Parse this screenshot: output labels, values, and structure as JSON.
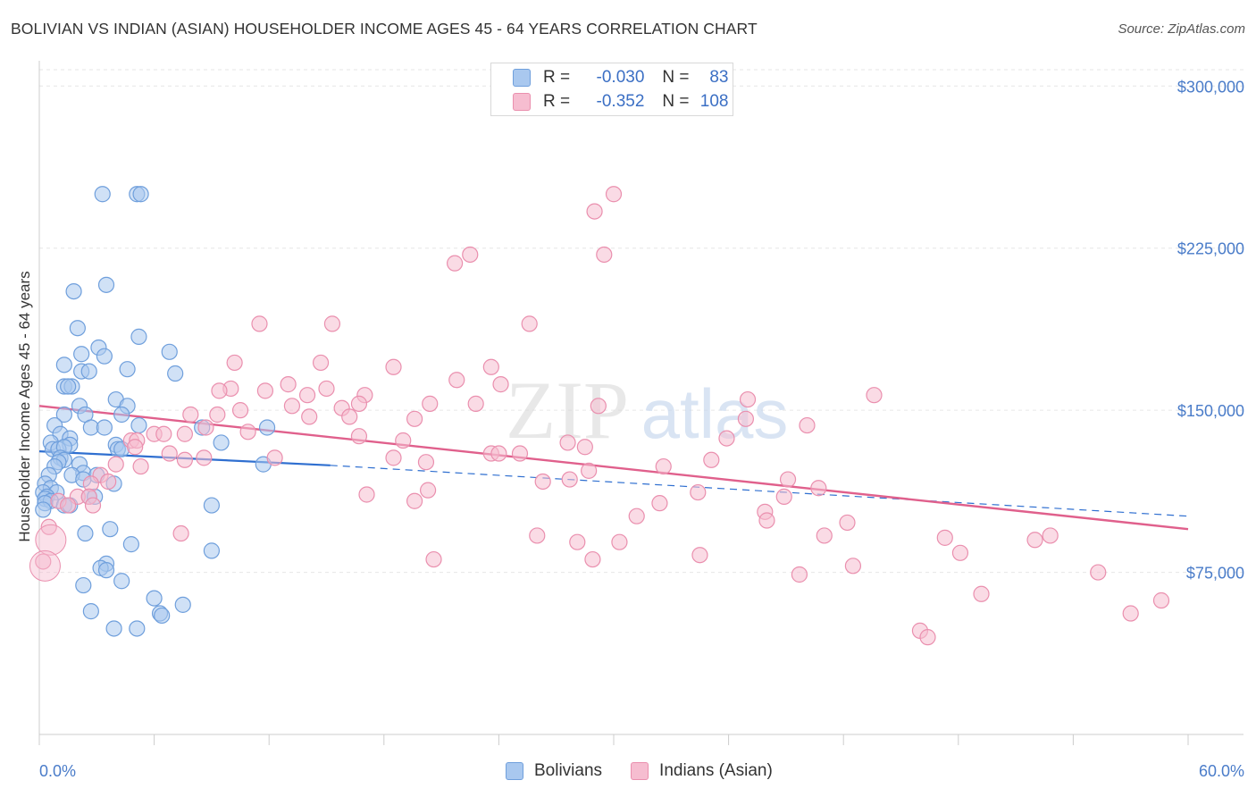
{
  "title": "BOLIVIAN VS INDIAN (ASIAN) HOUSEHOLDER INCOME AGES 45 - 64 YEARS CORRELATION CHART",
  "source": "Source: ZipAtlas.com",
  "watermark": {
    "part1": "ZIP",
    "part2": "atlas"
  },
  "colors": {
    "blue_fill": "#a9c8ef",
    "blue_stroke": "#6f9fdc",
    "blue_line": "#2f6fd0",
    "pink_fill": "#f6bdd0",
    "pink_stroke": "#ea8fae",
    "pink_line": "#e0608c",
    "grid": "#e6e6e6",
    "axis_text": "#4a7cc9"
  },
  "legend": {
    "rows": [
      {
        "r_label": "R =",
        "r_value": "-0.030",
        "n_label": "N =",
        "n_value": "83"
      },
      {
        "r_label": "R =",
        "r_value": "-0.352",
        "n_label": "N =",
        "n_value": "108"
      }
    ]
  },
  "bottom_legend": {
    "series1": "Bolivians",
    "series2": "Indians (Asian)"
  },
  "chart_data": {
    "type": "scatter",
    "title": "BOLIVIAN VS INDIAN (ASIAN) HOUSEHOLDER INCOME AGES 45 - 64 YEARS CORRELATION CHART",
    "xlabel": "",
    "ylabel": "Householder Income Ages 45 - 64 years",
    "xlim": [
      0,
      60
    ],
    "ylim": [
      0,
      315000
    ],
    "x_tick_labels": {
      "left": "0.0%",
      "right": "60.0%"
    },
    "y_ticks": [
      {
        "value": 75000,
        "label": "$75,000"
      },
      {
        "value": 150000,
        "label": "$150,000"
      },
      {
        "value": 225000,
        "label": "$225,000"
      },
      {
        "value": 300000,
        "label": "$300,000"
      }
    ],
    "grid": true,
    "legend_position": "top-center",
    "series": [
      {
        "name": "Bolivians",
        "color": "blue",
        "trend": {
          "x_start": 0,
          "y_start": 131000,
          "x_solid_end": 15.2,
          "y_solid_end": 124500,
          "x_end": 60,
          "y_end": 101000
        },
        "points": [
          [
            3.3,
            250000
          ],
          [
            5.1,
            250000
          ],
          [
            5.3,
            250000
          ],
          [
            1.8,
            205000
          ],
          [
            3.5,
            208000
          ],
          [
            2.0,
            188000
          ],
          [
            5.2,
            184000
          ],
          [
            3.1,
            179000
          ],
          [
            2.2,
            176000
          ],
          [
            3.4,
            175000
          ],
          [
            6.8,
            177000
          ],
          [
            1.3,
            171000
          ],
          [
            2.2,
            168000
          ],
          [
            2.6,
            168000
          ],
          [
            4.6,
            169000
          ],
          [
            7.1,
            167000
          ],
          [
            1.3,
            161000
          ],
          [
            1.7,
            161000
          ],
          [
            1.5,
            161000
          ],
          [
            4.0,
            155000
          ],
          [
            4.6,
            152000
          ],
          [
            2.1,
            152000
          ],
          [
            1.3,
            148000
          ],
          [
            2.4,
            148000
          ],
          [
            4.3,
            148000
          ],
          [
            5.2,
            143000
          ],
          [
            0.8,
            143000
          ],
          [
            2.7,
            142000
          ],
          [
            3.4,
            142000
          ],
          [
            8.5,
            142000
          ],
          [
            11.9,
            142000
          ],
          [
            1.1,
            139000
          ],
          [
            1.6,
            137000
          ],
          [
            0.6,
            135000
          ],
          [
            1.6,
            134000
          ],
          [
            4.0,
            134000
          ],
          [
            9.5,
            135000
          ],
          [
            0.7,
            132000
          ],
          [
            1.0,
            132000
          ],
          [
            1.3,
            133000
          ],
          [
            4.1,
            132000
          ],
          [
            4.3,
            132000
          ],
          [
            1.1,
            128000
          ],
          [
            1.3,
            127000
          ],
          [
            1.0,
            126000
          ],
          [
            2.1,
            125000
          ],
          [
            0.8,
            124000
          ],
          [
            11.7,
            125000
          ],
          [
            2.3,
            121000
          ],
          [
            1.7,
            120000
          ],
          [
            0.5,
            120000
          ],
          [
            3.0,
            120000
          ],
          [
            2.3,
            118000
          ],
          [
            0.3,
            116000
          ],
          [
            3.9,
            116000
          ],
          [
            0.6,
            114000
          ],
          [
            0.2,
            112000
          ],
          [
            0.9,
            112000
          ],
          [
            0.4,
            110000
          ],
          [
            0.3,
            109000
          ],
          [
            0.6,
            108000
          ],
          [
            2.6,
            110000
          ],
          [
            2.9,
            110000
          ],
          [
            0.3,
            107000
          ],
          [
            1.3,
            106000
          ],
          [
            1.6,
            106000
          ],
          [
            0.2,
            104000
          ],
          [
            9.0,
            106000
          ],
          [
            3.7,
            95000
          ],
          [
            2.4,
            93000
          ],
          [
            4.8,
            88000
          ],
          [
            9.0,
            85000
          ],
          [
            3.5,
            79000
          ],
          [
            3.2,
            77000
          ],
          [
            3.5,
            76000
          ],
          [
            4.3,
            71000
          ],
          [
            2.3,
            69000
          ],
          [
            6.0,
            63000
          ],
          [
            7.5,
            60000
          ],
          [
            6.3,
            56000
          ],
          [
            6.4,
            55000
          ],
          [
            2.7,
            57000
          ],
          [
            3.9,
            49000
          ],
          [
            5.1,
            49000
          ]
        ]
      },
      {
        "name": "Indians (Asian)",
        "color": "pink",
        "trend": {
          "x_start": 0,
          "y_start": 152000,
          "x_end": 60,
          "y_end": 95000
        },
        "points": [
          [
            30.0,
            250000
          ],
          [
            29.0,
            242000
          ],
          [
            22.5,
            222000
          ],
          [
            29.5,
            222000
          ],
          [
            21.7,
            218000
          ],
          [
            11.5,
            190000
          ],
          [
            15.3,
            190000
          ],
          [
            25.6,
            190000
          ],
          [
            10.2,
            172000
          ],
          [
            14.7,
            172000
          ],
          [
            18.5,
            170000
          ],
          [
            23.6,
            170000
          ],
          [
            21.8,
            164000
          ],
          [
            13.0,
            162000
          ],
          [
            24.1,
            162000
          ],
          [
            10.0,
            160000
          ],
          [
            15.0,
            160000
          ],
          [
            9.4,
            159000
          ],
          [
            11.8,
            159000
          ],
          [
            14.0,
            157000
          ],
          [
            17.0,
            157000
          ],
          [
            43.6,
            157000
          ],
          [
            37.0,
            155000
          ],
          [
            20.4,
            153000
          ],
          [
            22.8,
            153000
          ],
          [
            16.7,
            153000
          ],
          [
            13.2,
            152000
          ],
          [
            29.2,
            152000
          ],
          [
            15.8,
            151000
          ],
          [
            10.5,
            150000
          ],
          [
            9.3,
            148000
          ],
          [
            7.9,
            148000
          ],
          [
            14.1,
            147000
          ],
          [
            16.2,
            147000
          ],
          [
            19.6,
            146000
          ],
          [
            36.9,
            146000
          ],
          [
            40.1,
            143000
          ],
          [
            8.7,
            142000
          ],
          [
            10.9,
            140000
          ],
          [
            6.0,
            139000
          ],
          [
            6.5,
            139000
          ],
          [
            7.6,
            139000
          ],
          [
            16.7,
            138000
          ],
          [
            35.9,
            137000
          ],
          [
            4.8,
            136000
          ],
          [
            5.1,
            136000
          ],
          [
            19.0,
            136000
          ],
          [
            27.6,
            135000
          ],
          [
            28.5,
            133000
          ],
          [
            5.0,
            133000
          ],
          [
            23.6,
            130000
          ],
          [
            6.8,
            130000
          ],
          [
            25.1,
            130000
          ],
          [
            24.0,
            130000
          ],
          [
            8.6,
            128000
          ],
          [
            12.3,
            128000
          ],
          [
            18.5,
            128000
          ],
          [
            35.1,
            127000
          ],
          [
            7.6,
            127000
          ],
          [
            20.2,
            126000
          ],
          [
            4.0,
            125000
          ],
          [
            32.6,
            124000
          ],
          [
            5.3,
            124000
          ],
          [
            28.7,
            122000
          ],
          [
            3.2,
            120000
          ],
          [
            27.7,
            118000
          ],
          [
            26.3,
            117000
          ],
          [
            3.6,
            117000
          ],
          [
            39.1,
            118000
          ],
          [
            2.7,
            116000
          ],
          [
            40.7,
            114000
          ],
          [
            20.3,
            113000
          ],
          [
            34.4,
            112000
          ],
          [
            17.1,
            111000
          ],
          [
            38.9,
            110000
          ],
          [
            2.0,
            110000
          ],
          [
            2.6,
            110000
          ],
          [
            32.4,
            107000
          ],
          [
            19.6,
            108000
          ],
          [
            1.0,
            108000
          ],
          [
            2.8,
            106000
          ],
          [
            1.5,
            106000
          ],
          [
            37.9,
            103000
          ],
          [
            31.2,
            101000
          ],
          [
            38.0,
            99000
          ],
          [
            42.2,
            98000
          ],
          [
            0.5,
            96000
          ],
          [
            7.4,
            93000
          ],
          [
            26.0,
            92000
          ],
          [
            41.0,
            92000
          ],
          [
            47.3,
            91000
          ],
          [
            52.0,
            90000
          ],
          [
            52.8,
            92000
          ],
          [
            28.1,
            89000
          ],
          [
            30.3,
            89000
          ],
          [
            48.1,
            84000
          ],
          [
            34.5,
            83000
          ],
          [
            28.9,
            81000
          ],
          [
            20.6,
            81000
          ],
          [
            42.5,
            78000
          ],
          [
            55.3,
            75000
          ],
          [
            39.7,
            74000
          ],
          [
            49.2,
            65000
          ],
          [
            58.6,
            62000
          ],
          [
            57.0,
            56000
          ],
          [
            46.0,
            48000
          ],
          [
            46.4,
            45000
          ],
          [
            0.2,
            80000
          ]
        ]
      }
    ]
  }
}
